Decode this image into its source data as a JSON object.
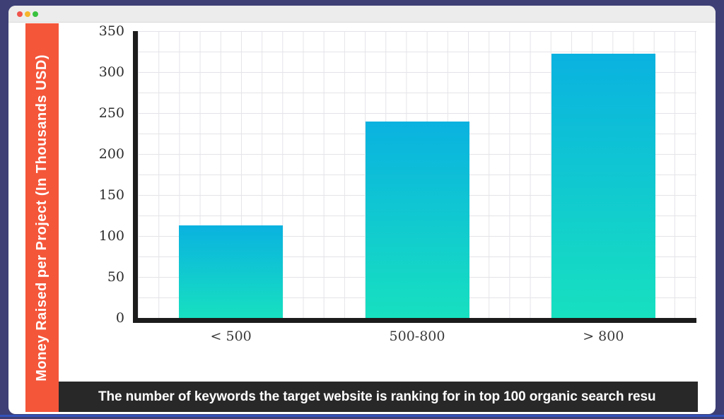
{
  "colors": {
    "frame_bg": "#3d3f75",
    "accent_line": "#3351b9",
    "titlebar_bg": "#ececec",
    "sidebar_bg": "#f4563a",
    "banner_bg": "#282828",
    "bar_gradient_top": "#0ab2e0",
    "bar_gradient_bottom": "#17e0c0",
    "axis_color": "#1c1c1c",
    "traffic_red": "#f0544c",
    "traffic_yellow": "#f6b62d",
    "traffic_green": "#39c23f"
  },
  "window": {
    "titlebar": {
      "close_label": "close",
      "minimize_label": "minimize",
      "maximize_label": "maximize"
    }
  },
  "sidebar": {
    "label": "Money Raised per Project (In Thousands USD)"
  },
  "banner": {
    "text": "The number of keywords the target website is ranking for in top 100 organic search resu"
  },
  "chart_data": {
    "type": "bar",
    "categories": [
      "< 500",
      "500-800",
      "> 800"
    ],
    "values": [
      113,
      240,
      322
    ],
    "title": "",
    "xlabel": "The number of keywords the target website is ranking for in top 100 organic search resu",
    "ylabel": "Money Raised per Project (In Thousands USD)",
    "ylim": [
      0,
      350
    ],
    "yticks": [
      0,
      50,
      100,
      150,
      200,
      250,
      300,
      350
    ],
    "grid": true,
    "legend": false,
    "bar_gradient": [
      "#0ab2e0",
      "#17e0c0"
    ]
  }
}
